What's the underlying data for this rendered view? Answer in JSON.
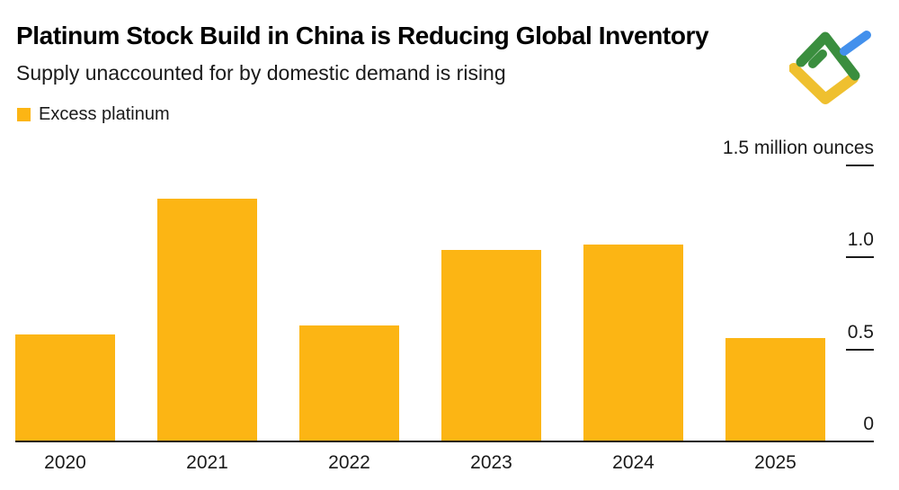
{
  "header": {
    "title": "Platinum Stock Build in China is Reducing Global Inventory",
    "subtitle": "Supply unaccounted for by domestic demand is rising"
  },
  "legend": {
    "label": "Excess platinum",
    "swatch_color": "#FCB514"
  },
  "chart_data": {
    "type": "bar",
    "title": "Platinum Stock Build in China is Reducing Global Inventory",
    "subtitle": "Supply unaccounted for by domestic demand is rising",
    "series_name": "Excess platinum",
    "categories": [
      "2020",
      "2021",
      "2022",
      "2023",
      "2024",
      "2025"
    ],
    "values": [
      0.58,
      1.32,
      0.63,
      1.04,
      1.07,
      0.56
    ],
    "ylabel": "million ounces",
    "ylim": [
      0,
      1.5
    ],
    "grid": false,
    "legend_position": "top-left",
    "yticks": [
      {
        "value": 1.5,
        "label": "1.5 million ounces",
        "dash": true
      },
      {
        "value": 1.0,
        "label": "1.0",
        "dash": true
      },
      {
        "value": 0.5,
        "label": "0.5",
        "dash": true
      },
      {
        "value": 0.0,
        "label": "0",
        "dash": false
      }
    ],
    "bar_color": "#FCB514",
    "axis_color": "#1a1a1a"
  },
  "logo": {
    "name": "litefinance-chart-logo",
    "green": "#3A8E3E",
    "blue": "#4390EC",
    "yellow": "#EFC02F"
  }
}
